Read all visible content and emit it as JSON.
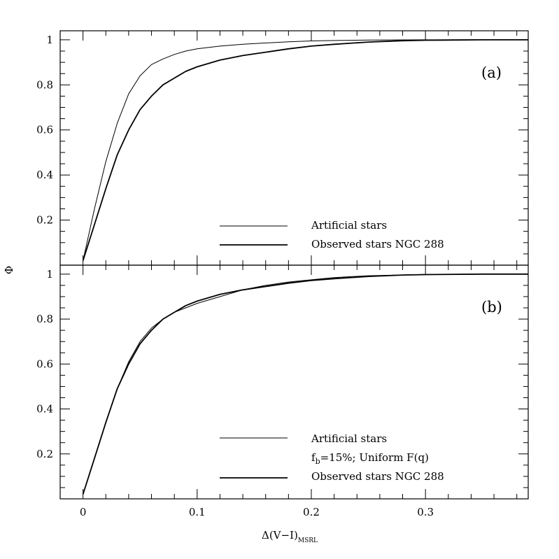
{
  "chart_data": [
    {
      "panel": "(a)",
      "type": "line",
      "xlim": [
        -0.02,
        0.39
      ],
      "ylim": [
        0,
        1.04
      ],
      "x_ticks": [
        0,
        0.1,
        0.2,
        0.3
      ],
      "x_tick_labels": [
        "0",
        "0.1",
        "0.2",
        "0.3"
      ],
      "y_ticks": [
        0.2,
        0.4,
        0.6,
        0.8,
        1
      ],
      "y_tick_labels": [
        "0.2",
        "0.4",
        "0.6",
        "0.8",
        "1"
      ],
      "ylabel": "Φ",
      "legend_position": "bottom-right",
      "series": [
        {
          "name": "Artificial stars",
          "x": [
            0,
            0.01,
            0.02,
            0.03,
            0.04,
            0.05,
            0.06,
            0.07,
            0.08,
            0.09,
            0.1,
            0.12,
            0.14,
            0.16,
            0.18,
            0.2,
            0.22,
            0.25,
            0.3,
            0.35,
            0.39
          ],
          "y": [
            0.02,
            0.25,
            0.46,
            0.63,
            0.76,
            0.84,
            0.89,
            0.915,
            0.935,
            0.95,
            0.96,
            0.972,
            0.98,
            0.986,
            0.991,
            0.995,
            0.997,
            0.999,
            1.0,
            1.0,
            1.0
          ]
        },
        {
          "name": "Observed stars NGC 288",
          "x": [
            0,
            0.01,
            0.02,
            0.03,
            0.04,
            0.05,
            0.06,
            0.07,
            0.08,
            0.09,
            0.1,
            0.12,
            0.14,
            0.16,
            0.18,
            0.2,
            0.22,
            0.25,
            0.28,
            0.3,
            0.35,
            0.39
          ],
          "y": [
            0.02,
            0.18,
            0.34,
            0.49,
            0.6,
            0.69,
            0.75,
            0.8,
            0.83,
            0.86,
            0.88,
            0.91,
            0.93,
            0.945,
            0.96,
            0.972,
            0.98,
            0.99,
            0.996,
            0.998,
            1.0,
            1.0
          ]
        }
      ]
    },
    {
      "panel": "(b)",
      "type": "line",
      "xlim": [
        -0.02,
        0.39
      ],
      "ylim": [
        0,
        1.04
      ],
      "x_ticks": [
        0,
        0.1,
        0.2,
        0.3
      ],
      "x_tick_labels": [
        "0",
        "0.1",
        "0.2",
        "0.3"
      ],
      "y_ticks": [
        0.2,
        0.4,
        0.6,
        0.8,
        1
      ],
      "y_tick_labels": [
        "0.2",
        "0.4",
        "0.6",
        "0.8",
        "1"
      ],
      "xlabel": "Δ(V−I)",
      "xlabel_sub": "MSRL",
      "ylabel": "Φ",
      "legend_position": "bottom-right",
      "series": [
        {
          "name_lines": [
            "Artificial stars",
            "f",
            "b",
            "=15%; Uniform F(q)"
          ],
          "x": [
            0,
            0.01,
            0.02,
            0.03,
            0.04,
            0.05,
            0.06,
            0.07,
            0.08,
            0.09,
            0.1,
            0.12,
            0.14,
            0.16,
            0.18,
            0.2,
            0.22,
            0.25,
            0.3,
            0.35,
            0.39
          ],
          "y": [
            0.02,
            0.18,
            0.34,
            0.49,
            0.61,
            0.7,
            0.76,
            0.8,
            0.83,
            0.85,
            0.87,
            0.9,
            0.93,
            0.95,
            0.965,
            0.975,
            0.985,
            0.993,
            0.999,
            1.0,
            1.0
          ]
        },
        {
          "name": "Observed stars NGC 288",
          "x": [
            0,
            0.01,
            0.02,
            0.03,
            0.04,
            0.05,
            0.06,
            0.07,
            0.08,
            0.09,
            0.1,
            0.12,
            0.14,
            0.16,
            0.18,
            0.2,
            0.22,
            0.25,
            0.28,
            0.3,
            0.35,
            0.39
          ],
          "y": [
            0.02,
            0.18,
            0.34,
            0.49,
            0.6,
            0.69,
            0.75,
            0.8,
            0.83,
            0.86,
            0.88,
            0.91,
            0.93,
            0.945,
            0.96,
            0.972,
            0.98,
            0.99,
            0.996,
            0.998,
            1.0,
            1.0
          ]
        }
      ]
    }
  ]
}
